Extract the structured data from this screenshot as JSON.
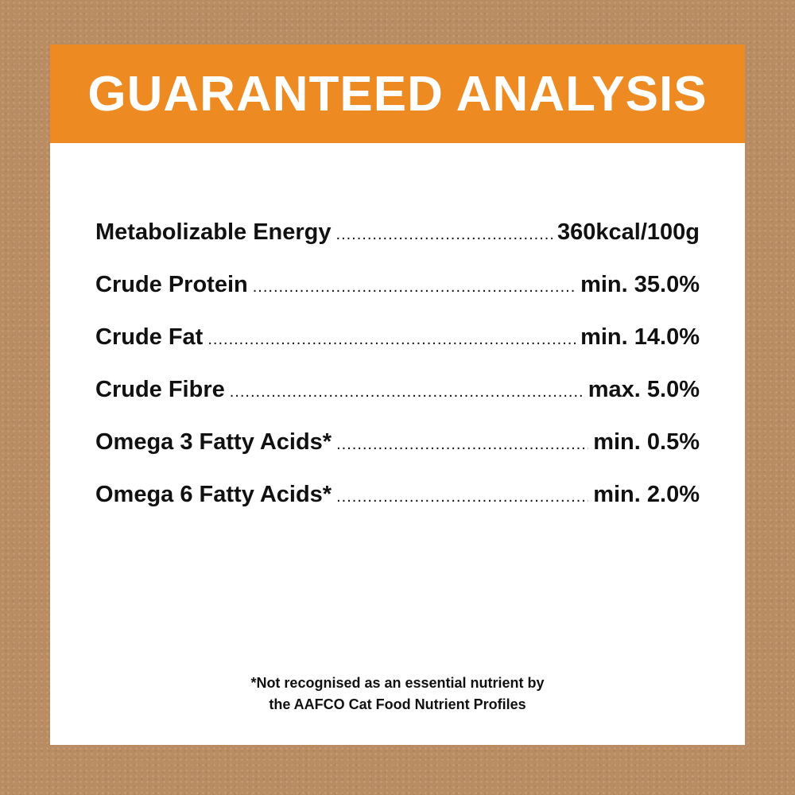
{
  "header": {
    "title": "GUARANTEED ANALYSIS"
  },
  "colors": {
    "header": "#ee8a22",
    "background": "#b98c63",
    "panel": "#ffffff"
  },
  "rows": [
    {
      "label": "Metabolizable Energy",
      "value": "360kcal/100g"
    },
    {
      "label": "Crude Protein",
      "value": "min. 35.0%"
    },
    {
      "label": "Crude Fat",
      "value": "min. 14.0%"
    },
    {
      "label": "Crude Fibre",
      "value": "max. 5.0%"
    },
    {
      "label": "Omega 3 Fatty Acids*",
      "value": "min. 0.5%"
    },
    {
      "label": "Omega 6 Fatty Acids*",
      "value": "min. 2.0%"
    }
  ],
  "footnote": {
    "line1": "*Not recognised as an essential nutrient by",
    "line2": "the AAFCO Cat Food Nutrient Profiles"
  }
}
